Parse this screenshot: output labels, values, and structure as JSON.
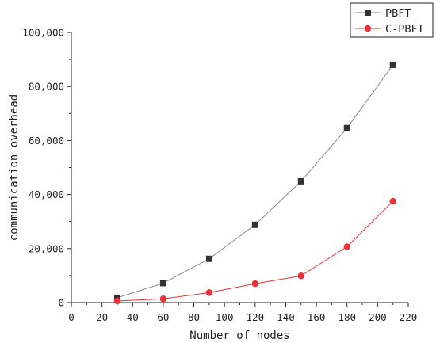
{
  "chart_data": {
    "type": "line",
    "title": "",
    "xlabel": "Number of nodes",
    "ylabel": "communication overhead",
    "xlim": [
      0,
      220
    ],
    "ylim": [
      0,
      100000
    ],
    "x_ticks": [
      "0",
      "20",
      "40",
      "60",
      "80",
      "100",
      "120",
      "140",
      "160",
      "180",
      "200",
      "220"
    ],
    "y_ticks": [
      "0",
      "20,000",
      "40,000",
      "60,000",
      "80,000",
      "100,000"
    ],
    "x": [
      30,
      60,
      90,
      120,
      150,
      180,
      210
    ],
    "grid": false,
    "legend_position": "top-right",
    "series": [
      {
        "name": "PBFT",
        "marker": "square",
        "color": "#333333",
        "line_color": "#888888",
        "values": [
          1800,
          7200,
          16200,
          28800,
          44900,
          64600,
          88000
        ]
      },
      {
        "name": "C-PBFT",
        "marker": "circle",
        "color": "#e8333a",
        "line_color": "#e8333a",
        "values": [
          600,
          1400,
          3700,
          7000,
          9900,
          20700,
          37500
        ]
      }
    ]
  }
}
